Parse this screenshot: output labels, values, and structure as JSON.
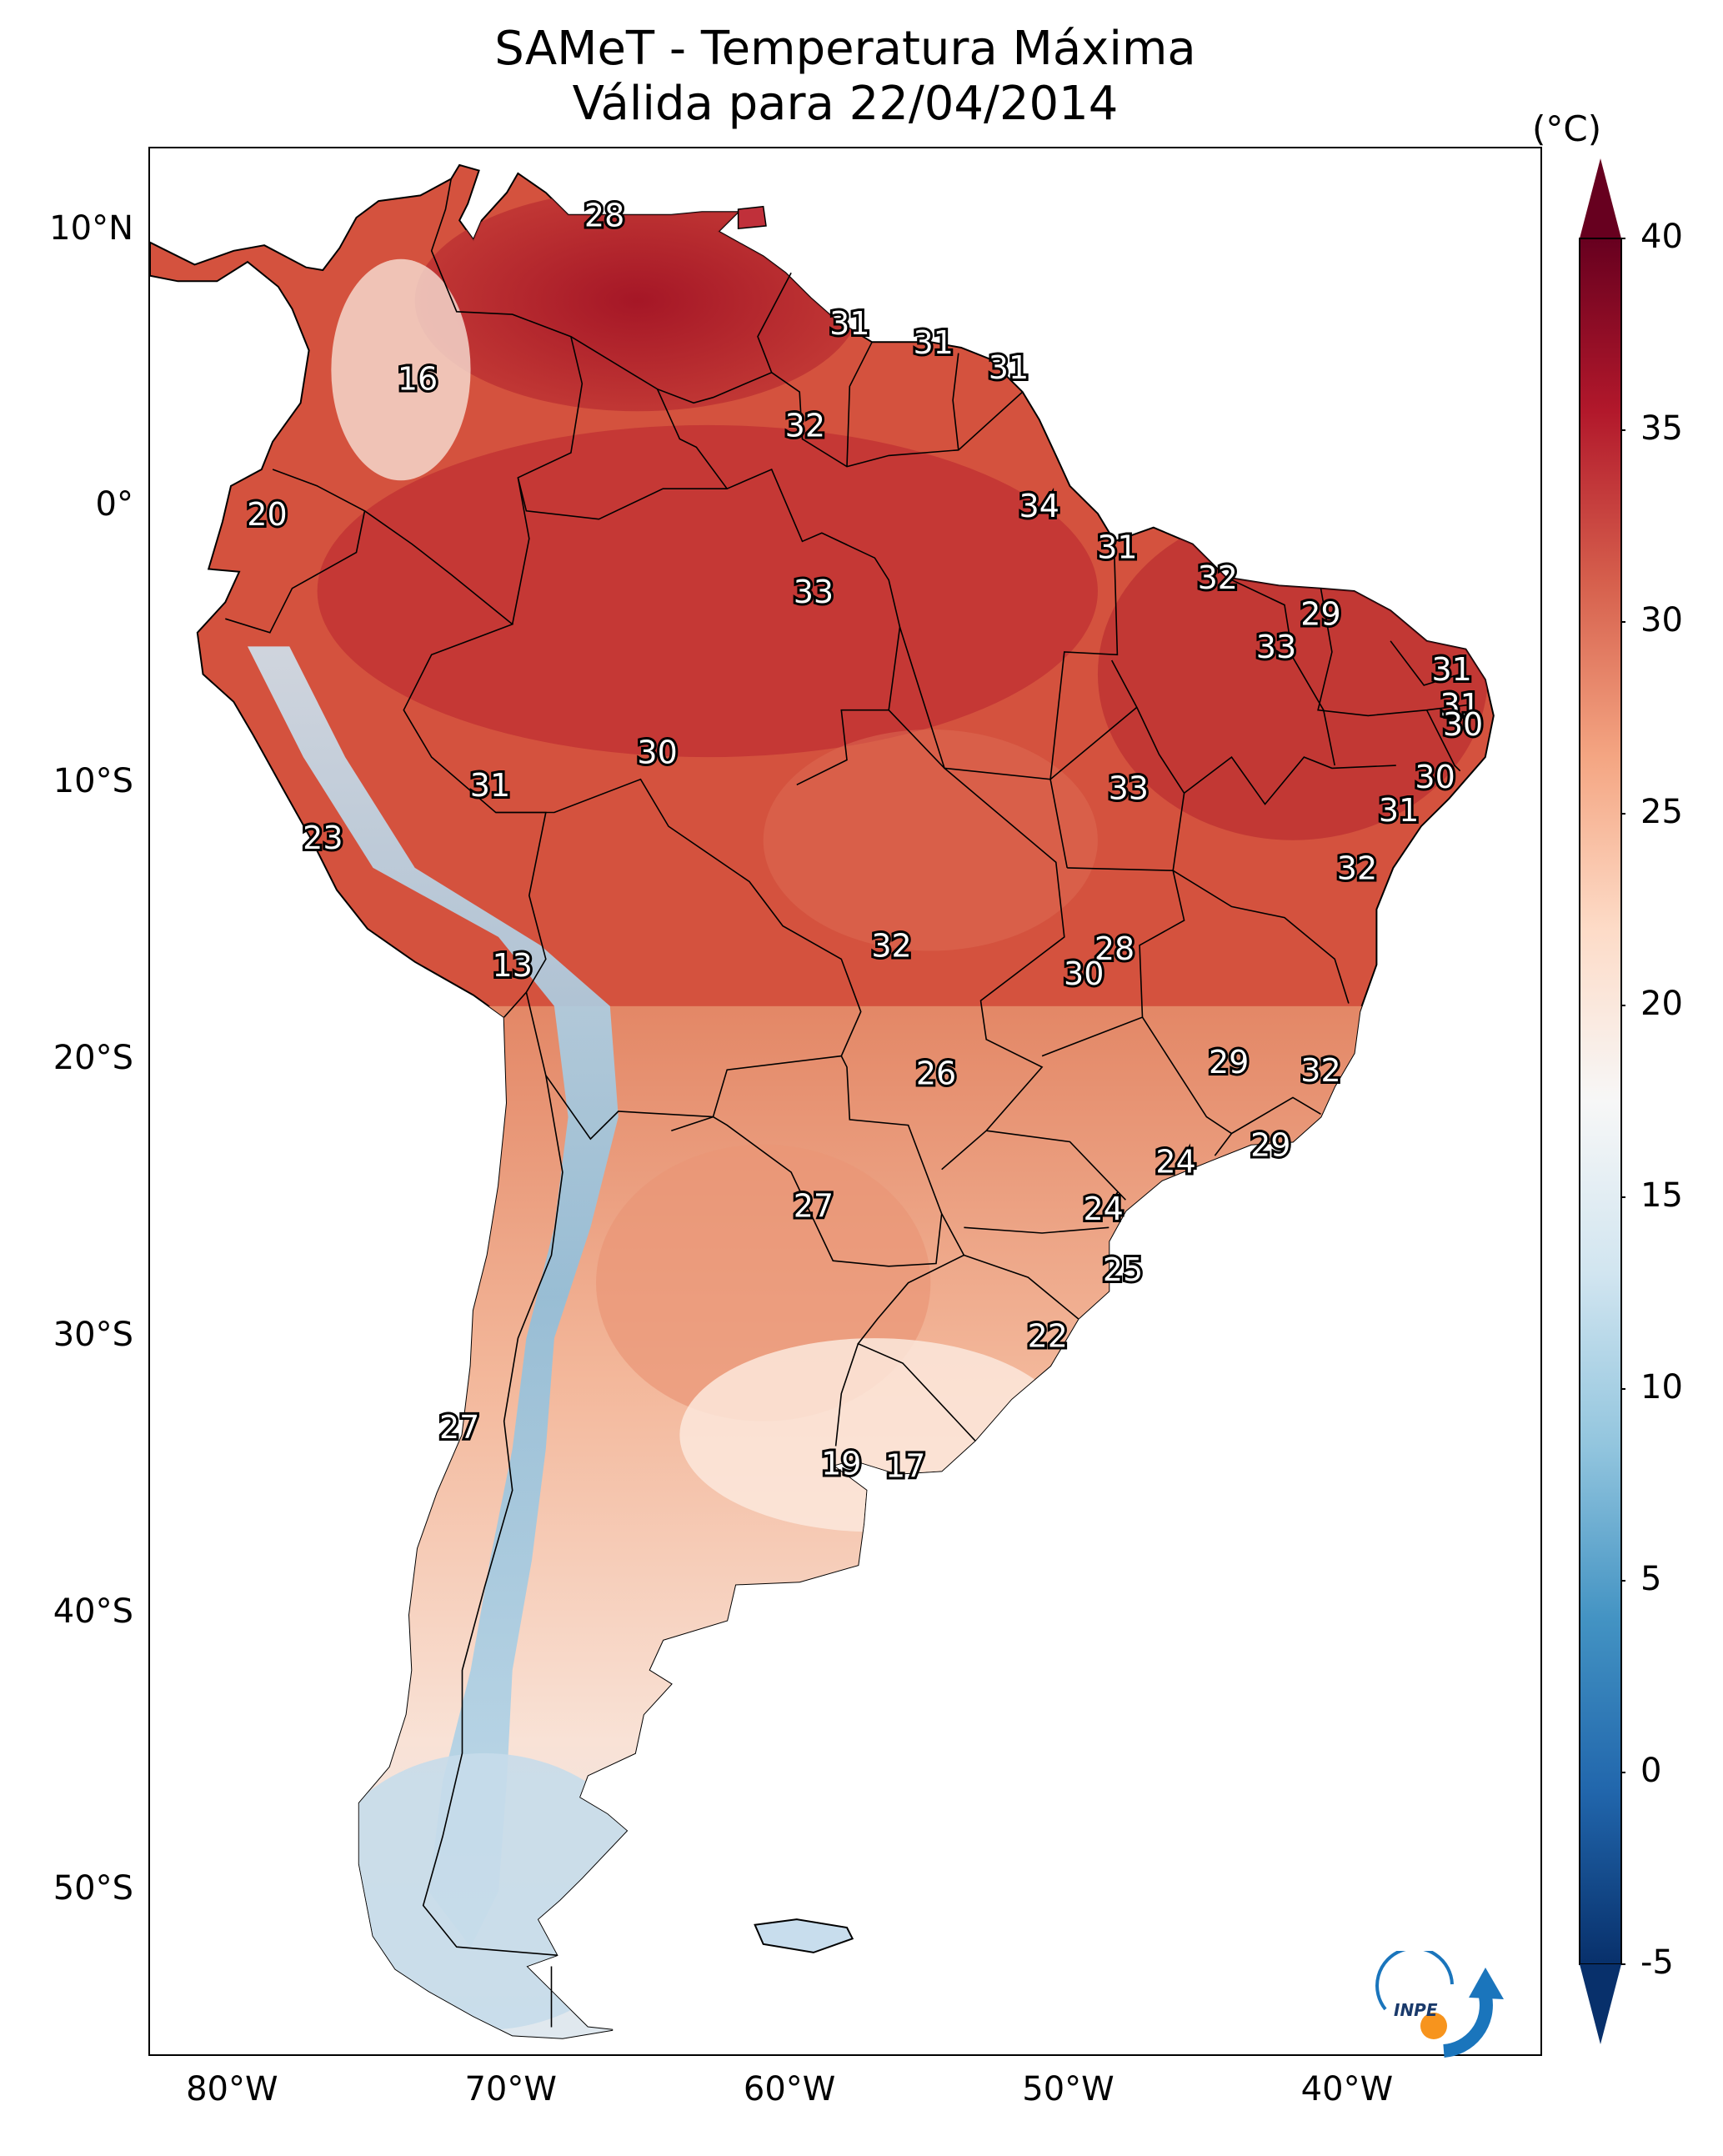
{
  "title": {
    "line1": "SAMeT - Temperatura Máxima",
    "line2": "Válida para 22/04/2014"
  },
  "map": {
    "lon_range": [
      -83,
      -33
    ],
    "lat_range": [
      -56,
      13
    ],
    "lat_ticks": [
      {
        "value": 10,
        "label": "10°N"
      },
      {
        "value": 0,
        "label": "0°"
      },
      {
        "value": -10,
        "label": "10°S"
      },
      {
        "value": -20,
        "label": "20°S"
      },
      {
        "value": -30,
        "label": "30°S"
      },
      {
        "value": -40,
        "label": "40°S"
      },
      {
        "value": -50,
        "label": "50°S"
      }
    ],
    "lon_ticks": [
      {
        "value": -80,
        "label": "80°W"
      },
      {
        "value": -70,
        "label": "70°W"
      },
      {
        "value": -60,
        "label": "60°W"
      },
      {
        "value": -50,
        "label": "50°W"
      },
      {
        "value": -40,
        "label": "40°W"
      }
    ],
    "value_labels": [
      {
        "lon": -66.7,
        "lat": 10.5,
        "text": "28"
      },
      {
        "lon": -57.9,
        "lat": 6.6,
        "text": "31"
      },
      {
        "lon": -54.9,
        "lat": 5.9,
        "text": "31"
      },
      {
        "lon": -52.2,
        "lat": 5.0,
        "text": "31"
      },
      {
        "lon": -73.4,
        "lat": 4.6,
        "text": "16"
      },
      {
        "lon": -59.5,
        "lat": 2.9,
        "text": "32"
      },
      {
        "lon": -51.1,
        "lat": 0.0,
        "text": "34"
      },
      {
        "lon": -78.8,
        "lat": -0.3,
        "text": "20"
      },
      {
        "lon": -48.3,
        "lat": -1.5,
        "text": "31"
      },
      {
        "lon": -59.2,
        "lat": -3.1,
        "text": "33"
      },
      {
        "lon": -44.7,
        "lat": -2.6,
        "text": "32"
      },
      {
        "lon": -41.0,
        "lat": -3.9,
        "text": "29"
      },
      {
        "lon": -42.6,
        "lat": -5.1,
        "text": "33"
      },
      {
        "lon": -36.3,
        "lat": -5.9,
        "text": "31"
      },
      {
        "lon": -36.0,
        "lat": -7.2,
        "text": "31"
      },
      {
        "lon": -35.9,
        "lat": -7.9,
        "text": "30"
      },
      {
        "lon": -64.8,
        "lat": -8.9,
        "text": "30"
      },
      {
        "lon": -70.8,
        "lat": -10.1,
        "text": "31"
      },
      {
        "lon": -47.9,
        "lat": -10.2,
        "text": "33"
      },
      {
        "lon": -36.9,
        "lat": -9.8,
        "text": "30"
      },
      {
        "lon": -38.2,
        "lat": -11.0,
        "text": "31"
      },
      {
        "lon": -76.8,
        "lat": -12.0,
        "text": "23"
      },
      {
        "lon": -39.7,
        "lat": -13.1,
        "text": "32"
      },
      {
        "lon": -70.0,
        "lat": -16.6,
        "text": "13"
      },
      {
        "lon": -56.4,
        "lat": -15.9,
        "text": "32"
      },
      {
        "lon": -48.4,
        "lat": -16.0,
        "text": "28"
      },
      {
        "lon": -49.5,
        "lat": -16.9,
        "text": "30"
      },
      {
        "lon": -44.3,
        "lat": -20.1,
        "text": "29"
      },
      {
        "lon": -54.8,
        "lat": -20.5,
        "text": "26"
      },
      {
        "lon": -41.0,
        "lat": -20.4,
        "text": "32"
      },
      {
        "lon": -42.8,
        "lat": -23.1,
        "text": "29"
      },
      {
        "lon": -46.2,
        "lat": -23.7,
        "text": "24"
      },
      {
        "lon": -59.2,
        "lat": -25.3,
        "text": "27"
      },
      {
        "lon": -48.8,
        "lat": -25.4,
        "text": "24"
      },
      {
        "lon": -48.1,
        "lat": -27.6,
        "text": "25"
      },
      {
        "lon": -50.8,
        "lat": -30.0,
        "text": "22"
      },
      {
        "lon": -71.9,
        "lat": -33.3,
        "text": "27"
      },
      {
        "lon": -58.2,
        "lat": -34.6,
        "text": "19"
      },
      {
        "lon": -55.9,
        "lat": -34.7,
        "text": "17"
      }
    ]
  },
  "colorbar": {
    "unit": "(°C)",
    "range": [
      -5,
      40
    ],
    "ticks": [
      "-5",
      "0",
      "5",
      "10",
      "15",
      "20",
      "25",
      "30",
      "35",
      "40"
    ],
    "colors": [
      "#08306b",
      "#2166ac",
      "#4393c3",
      "#92c5de",
      "#d1e5f0",
      "#f7f7f7",
      "#fddbc7",
      "#f4a582",
      "#d6604d",
      "#b2182b",
      "#67001f"
    ]
  },
  "logo": {
    "text": "INPE",
    "colors": {
      "primary": "#1a75bc",
      "accent": "#f7941d"
    }
  }
}
